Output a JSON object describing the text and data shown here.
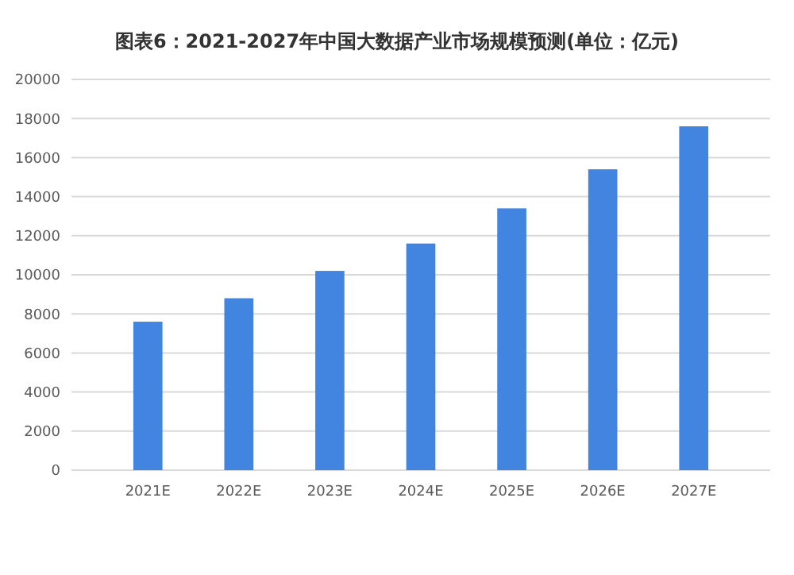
{
  "chart_data": {
    "type": "bar",
    "title": "图表6：2021-2027年中国大数据产业市场规模预测(单位：亿元)",
    "categories": [
      "2021E",
      "2022E",
      "2023E",
      "2024E",
      "2025E",
      "2026E",
      "2027E"
    ],
    "values": [
      7600,
      8800,
      10200,
      11600,
      13400,
      15400,
      17600
    ],
    "color": "#4285e0",
    "ylim": [
      0,
      20000
    ],
    "yticks": [
      0,
      2000,
      4000,
      6000,
      8000,
      10000,
      12000,
      14000,
      16000,
      18000,
      20000
    ],
    "grid": "y"
  }
}
